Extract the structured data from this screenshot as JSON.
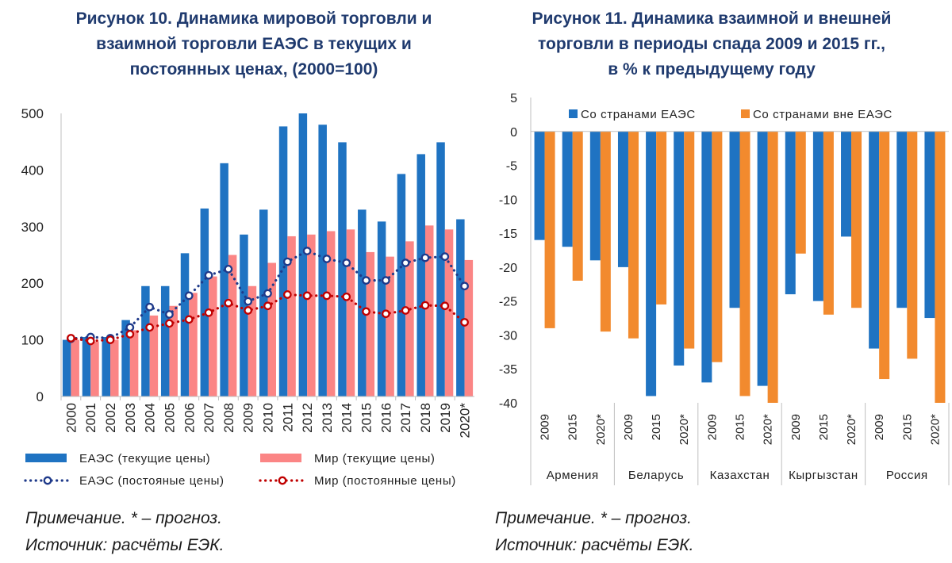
{
  "figure10": {
    "title_line1": "Рисунок 10. Динамика мировой торговли и",
    "title_line2": "взаимной торговли ЕАЭС в текущих и",
    "title_line3": "постоянных ценах, (2000=100)",
    "note": "Примечание. * – прогноз.",
    "source": "Источник: расчёты ЕЭК.",
    "colors": {
      "eaeu_bar": "#1f73c2",
      "world_bar": "#fb8585",
      "eaeu_line": "#1f3a8a",
      "world_line": "#c00000"
    },
    "chart_data": {
      "type": "bar",
      "categories": [
        "2000",
        "2001",
        "2002",
        "2003",
        "2004",
        "2005",
        "2006",
        "2007",
        "2008",
        "2009",
        "2010",
        "2011",
        "2012",
        "2013",
        "2014",
        "2015",
        "2016",
        "2017",
        "2018",
        "2019",
        "2020*"
      ],
      "ylim": [
        0,
        500
      ],
      "yticks": [
        0,
        100,
        200,
        300,
        400,
        500
      ],
      "grid": false,
      "legend_position": "bottom",
      "series": [
        {
          "name": "ЕАЭС (текущие цены)",
          "kind": "bar",
          "values": [
            100,
            105,
            105,
            135,
            195,
            195,
            253,
            332,
            412,
            286,
            330,
            477,
            500,
            480,
            449,
            330,
            309,
            393,
            428,
            449,
            313
          ]
        },
        {
          "name": "Мир (текущие цены)",
          "kind": "bar",
          "values": [
            100,
            97,
            100,
            117,
            143,
            160,
            183,
            212,
            250,
            195,
            236,
            283,
            286,
            292,
            295,
            255,
            247,
            274,
            302,
            295,
            241
          ]
        },
        {
          "name": "ЕАЭС (постояные цены)",
          "kind": "line-dotted-markers",
          "values": [
            102,
            105,
            103,
            122,
            158,
            145,
            178,
            214,
            225,
            168,
            182,
            238,
            257,
            243,
            236,
            205,
            205,
            236,
            245,
            247,
            195
          ]
        },
        {
          "name": "Мир (постоянные цены)",
          "kind": "line-dotted-markers",
          "values": [
            103,
            98,
            100,
            110,
            122,
            129,
            136,
            148,
            165,
            152,
            160,
            180,
            178,
            178,
            176,
            150,
            146,
            152,
            161,
            160,
            131
          ]
        }
      ]
    }
  },
  "figure11": {
    "title_line1": "Рисунок 11. Динамика взаимной и внешней",
    "title_line2": "торговли в периоды спада 2009 и 2015 гг.,",
    "title_line3": "в % к предыдущему году",
    "note": "Примечание. * – прогноз.",
    "source": "Источник: расчёты ЕЭК.",
    "colors": {
      "within": "#1f73c2",
      "outside": "#f28a2e"
    },
    "chart_data": {
      "type": "bar",
      "ylim": [
        -40,
        5
      ],
      "yticks": [
        5,
        0,
        -5,
        -10,
        -15,
        -20,
        -25,
        -30,
        -35,
        -40
      ],
      "grid": false,
      "legend_position": "top",
      "groups": [
        "Армения",
        "Беларусь",
        "Казахстан",
        "Кыргызстан",
        "Россия"
      ],
      "subcategories": [
        "2009",
        "2015",
        "2020*"
      ],
      "series": [
        {
          "name": "Со странами ЕАЭС",
          "values": [
            [
              -16,
              -17,
              -19
            ],
            [
              -20,
              -39,
              -34.5
            ],
            [
              -37,
              -26,
              -37.5
            ],
            [
              -24,
              -25,
              -15.5
            ],
            [
              -32,
              -26,
              -27.5
            ]
          ]
        },
        {
          "name": "Со странами вне ЕАЭС",
          "values": [
            [
              -29,
              -22,
              -29.5
            ],
            [
              -30.5,
              -25.5,
              -32
            ],
            [
              -34,
              -39,
              -40
            ],
            [
              -18,
              -27,
              -26
            ],
            [
              -36.5,
              -33.5,
              -40
            ]
          ]
        }
      ]
    }
  }
}
